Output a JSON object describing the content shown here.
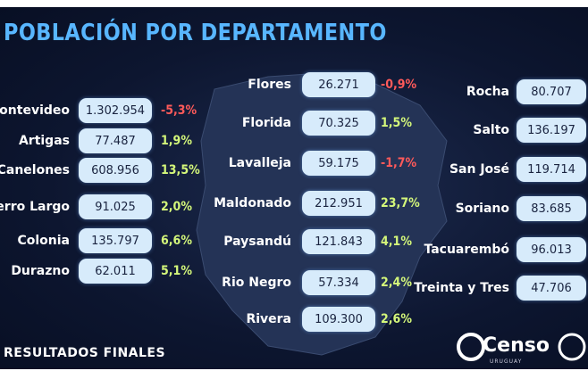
{
  "title": "POBLACIÓN POR DEPARTAMENTO",
  "columns": [
    {
      "rows": [
        {
          "name": "Montevideo",
          "population": "1.302.954",
          "change": "-5,3%"
        },
        {
          "name": "Artigas",
          "population": "77.487",
          "change": "1,9%"
        },
        {
          "name": "Canelones",
          "population": "608.956",
          "change": "13,5%"
        },
        {
          "name": "Cerro Largo",
          "population": "91.025",
          "change": "2,0%"
        },
        {
          "name": "Colonia",
          "population": "135.797",
          "change": "6,6%"
        },
        {
          "name": "Durazno",
          "population": "62.011",
          "change": "5,1%"
        }
      ]
    },
    {
      "rows": [
        {
          "name": "Flores",
          "population": "26.271",
          "change": "-0,9%"
        },
        {
          "name": "Florida",
          "population": "70.325",
          "change": "1,5%"
        },
        {
          "name": "Lavalleja",
          "population": "59.175",
          "change": "-1,7%"
        },
        {
          "name": "Maldonado",
          "population": "212.951",
          "change": "23,7%"
        },
        {
          "name": "Paysandú",
          "population": "121.843",
          "change": "4,1%"
        },
        {
          "name": "Rio Negro",
          "population": "57.334",
          "change": "2,4%"
        },
        {
          "name": "Rivera",
          "population": "109.300",
          "change": "2,6%"
        }
      ]
    },
    {
      "rows": [
        {
          "name": "Rocha",
          "population": "80.707"
        },
        {
          "name": "Salto",
          "population": "136.197"
        },
        {
          "name": "San José",
          "population": "119.714"
        },
        {
          "name": "Soriano",
          "population": "83.685"
        },
        {
          "name": "Tacuarembó",
          "population": "96.013"
        },
        {
          "name": "Treinta y Tres",
          "population": "47.706"
        }
      ]
    }
  ],
  "footer": "RESULTADOS FINALES",
  "logo": {
    "name": "Censo",
    "subtitle": "URUGUAY"
  }
}
